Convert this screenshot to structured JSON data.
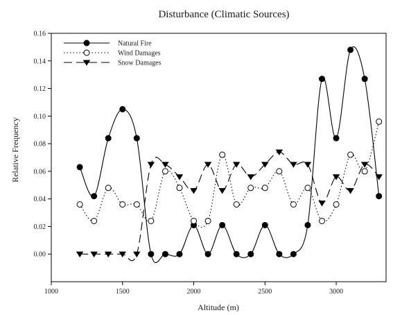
{
  "chart_data": {
    "type": "line",
    "title": "Disturbance (Climatic Sources)",
    "xlabel": "Altitude (m)",
    "ylabel": "Relative Frequency",
    "xlim": [
      1000,
      3350
    ],
    "ylim": [
      -0.02,
      0.16
    ],
    "xticks": [
      1000,
      1500,
      2000,
      2500,
      3000
    ],
    "yticks": [
      0.0,
      0.02,
      0.04,
      0.06,
      0.08,
      0.1,
      0.12,
      0.14,
      0.16
    ],
    "grid": false,
    "legend": "top-left",
    "x": [
      1200,
      1300,
      1400,
      1500,
      1600,
      1700,
      1800,
      1900,
      2000,
      2100,
      2200,
      2300,
      2400,
      2500,
      2600,
      2700,
      2800,
      2900,
      3000,
      3100,
      3200,
      3300
    ],
    "series": [
      {
        "name": "Natural Fire",
        "marker": "filled-circle",
        "line": "solid",
        "values": [
          0.063,
          0.042,
          0.084,
          0.105,
          0.084,
          0.0,
          0.0,
          0.0,
          0.021,
          0.0,
          0.021,
          0.0,
          0.0,
          0.021,
          0.0,
          0.0,
          0.021,
          0.127,
          0.084,
          0.148,
          0.127,
          0.042
        ]
      },
      {
        "name": "Wind Damages",
        "marker": "open-circle",
        "line": "dotted",
        "values": [
          0.036,
          0.024,
          0.048,
          0.036,
          0.036,
          0.024,
          0.06,
          0.048,
          0.024,
          0.024,
          0.072,
          0.036,
          0.048,
          0.048,
          0.06,
          0.036,
          0.048,
          0.024,
          0.036,
          0.072,
          0.06,
          0.096
        ]
      },
      {
        "name": "Snow Damages",
        "marker": "filled-triangle-down",
        "line": "dashed",
        "values": [
          0.0,
          0.0,
          0.0,
          0.0,
          0.0,
          0.065,
          0.065,
          0.056,
          0.046,
          0.065,
          0.046,
          0.065,
          0.056,
          0.065,
          0.074,
          0.065,
          0.065,
          0.037,
          0.056,
          0.046,
          0.065,
          0.056
        ]
      }
    ]
  }
}
